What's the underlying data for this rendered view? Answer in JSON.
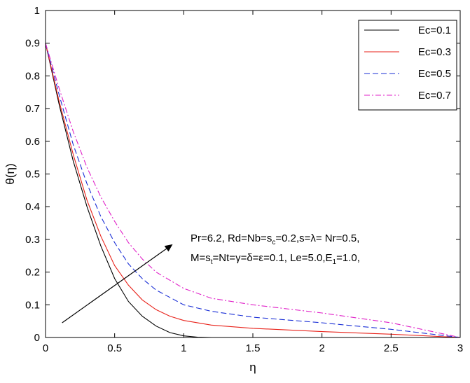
{
  "chart_data": {
    "type": "line",
    "title": "",
    "xlabel": "η",
    "ylabel": "θ(η)",
    "xlim": [
      0,
      3
    ],
    "ylim": [
      0,
      1
    ],
    "xticks": [
      0,
      0.5,
      1,
      1.5,
      2,
      2.5,
      3
    ],
    "xtick_labels": [
      "0",
      "0.5",
      "1",
      "1.5",
      "2",
      "2.5",
      "3"
    ],
    "yticks": [
      0,
      0.1,
      0.2,
      0.3,
      0.4,
      0.5,
      0.6,
      0.7,
      0.8,
      0.9,
      1
    ],
    "ytick_labels": [
      "0",
      "0.1",
      "0.2",
      "0.3",
      "0.4",
      "0.5",
      "0.6",
      "0.7",
      "0.8",
      "0.9",
      "1"
    ],
    "grid": false,
    "legend_position": "top-right",
    "series": [
      {
        "name": "Ec=0.1",
        "color": "#000000",
        "style": "solid",
        "x": [
          0,
          0.1,
          0.2,
          0.3,
          0.4,
          0.5,
          0.6,
          0.7,
          0.8,
          0.9,
          1.0,
          1.1,
          1.2,
          1.5,
          2,
          2.5,
          3
        ],
        "y": [
          0.9,
          0.71,
          0.54,
          0.4,
          0.28,
          0.18,
          0.11,
          0.065,
          0.035,
          0.015,
          0.005,
          0.001,
          0,
          0,
          0,
          0,
          0
        ]
      },
      {
        "name": "Ec=0.3",
        "color": "#e8221a",
        "style": "solid",
        "x": [
          0,
          0.1,
          0.2,
          0.3,
          0.4,
          0.5,
          0.6,
          0.7,
          0.8,
          0.9,
          1.0,
          1.2,
          1.5,
          2,
          2.5,
          3
        ],
        "y": [
          0.9,
          0.72,
          0.56,
          0.42,
          0.31,
          0.22,
          0.16,
          0.115,
          0.085,
          0.065,
          0.052,
          0.038,
          0.028,
          0.018,
          0.01,
          0
        ]
      },
      {
        "name": "Ec=0.5",
        "color": "#1a2fd6",
        "style": "dashed",
        "x": [
          0,
          0.1,
          0.2,
          0.3,
          0.4,
          0.5,
          0.6,
          0.7,
          0.8,
          1.0,
          1.2,
          1.5,
          2,
          2.5,
          3
        ],
        "y": [
          0.9,
          0.74,
          0.59,
          0.47,
          0.37,
          0.29,
          0.225,
          0.18,
          0.145,
          0.1,
          0.08,
          0.062,
          0.045,
          0.025,
          0
        ]
      },
      {
        "name": "Ec=0.7",
        "color": "#e020c8",
        "style": "dashdot",
        "x": [
          0,
          0.1,
          0.2,
          0.3,
          0.4,
          0.5,
          0.6,
          0.7,
          0.8,
          1.0,
          1.2,
          1.5,
          2,
          2.5,
          3
        ],
        "y": [
          0.9,
          0.76,
          0.63,
          0.52,
          0.43,
          0.355,
          0.29,
          0.24,
          0.2,
          0.15,
          0.12,
          0.1,
          0.075,
          0.045,
          0
        ]
      }
    ],
    "annotation": {
      "line1_parts": [
        "Pr=6.2, Rd=Nb=s",
        "c",
        "=0.2,s=λ= Nr=0.5,"
      ],
      "line2_parts": [
        "M=s",
        "t",
        "=Nt=γ=δ=ε=0.1, Le=5.0,E",
        "1",
        "=1.0,"
      ],
      "arrow": {
        "from": [
          0.12,
          0.045
        ],
        "to": [
          0.92,
          0.285
        ]
      }
    }
  }
}
